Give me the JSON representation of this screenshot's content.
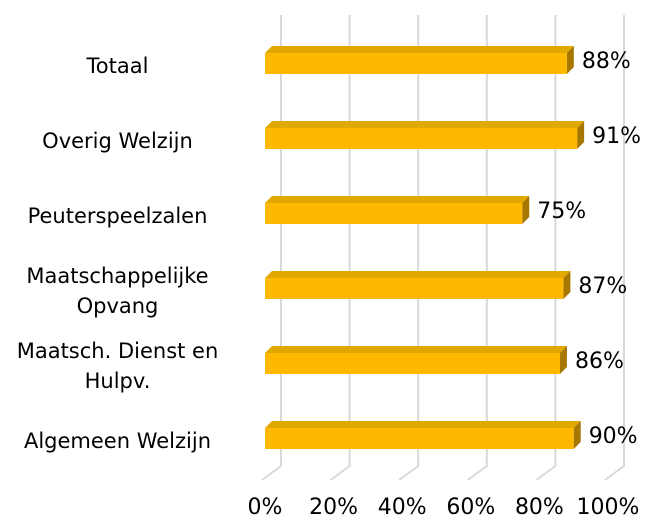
{
  "chart_data": {
    "type": "bar",
    "orientation": "horizontal",
    "categories": [
      "Totaal",
      "Overig Welzijn",
      "Peuterspeelzalen",
      "Maatschappelijke\nOpvang",
      "Maatsch. Dienst en\nHulpv.",
      "Algemeen Welzijn"
    ],
    "values": [
      88,
      91,
      75,
      87,
      86,
      90
    ],
    "value_labels": [
      "88%",
      "91%",
      "75%",
      "87%",
      "86%",
      "90%"
    ],
    "color": "#ffb800",
    "xlim": [
      0,
      100
    ],
    "xticks": [
      {
        "value": 0,
        "label": "0%"
      },
      {
        "value": 20,
        "label": "20%"
      },
      {
        "value": 40,
        "label": "40%"
      },
      {
        "value": 60,
        "label": "60%"
      },
      {
        "value": 80,
        "label": "80%"
      },
      {
        "value": 100,
        "label": "100%"
      }
    ],
    "grid": true
  }
}
